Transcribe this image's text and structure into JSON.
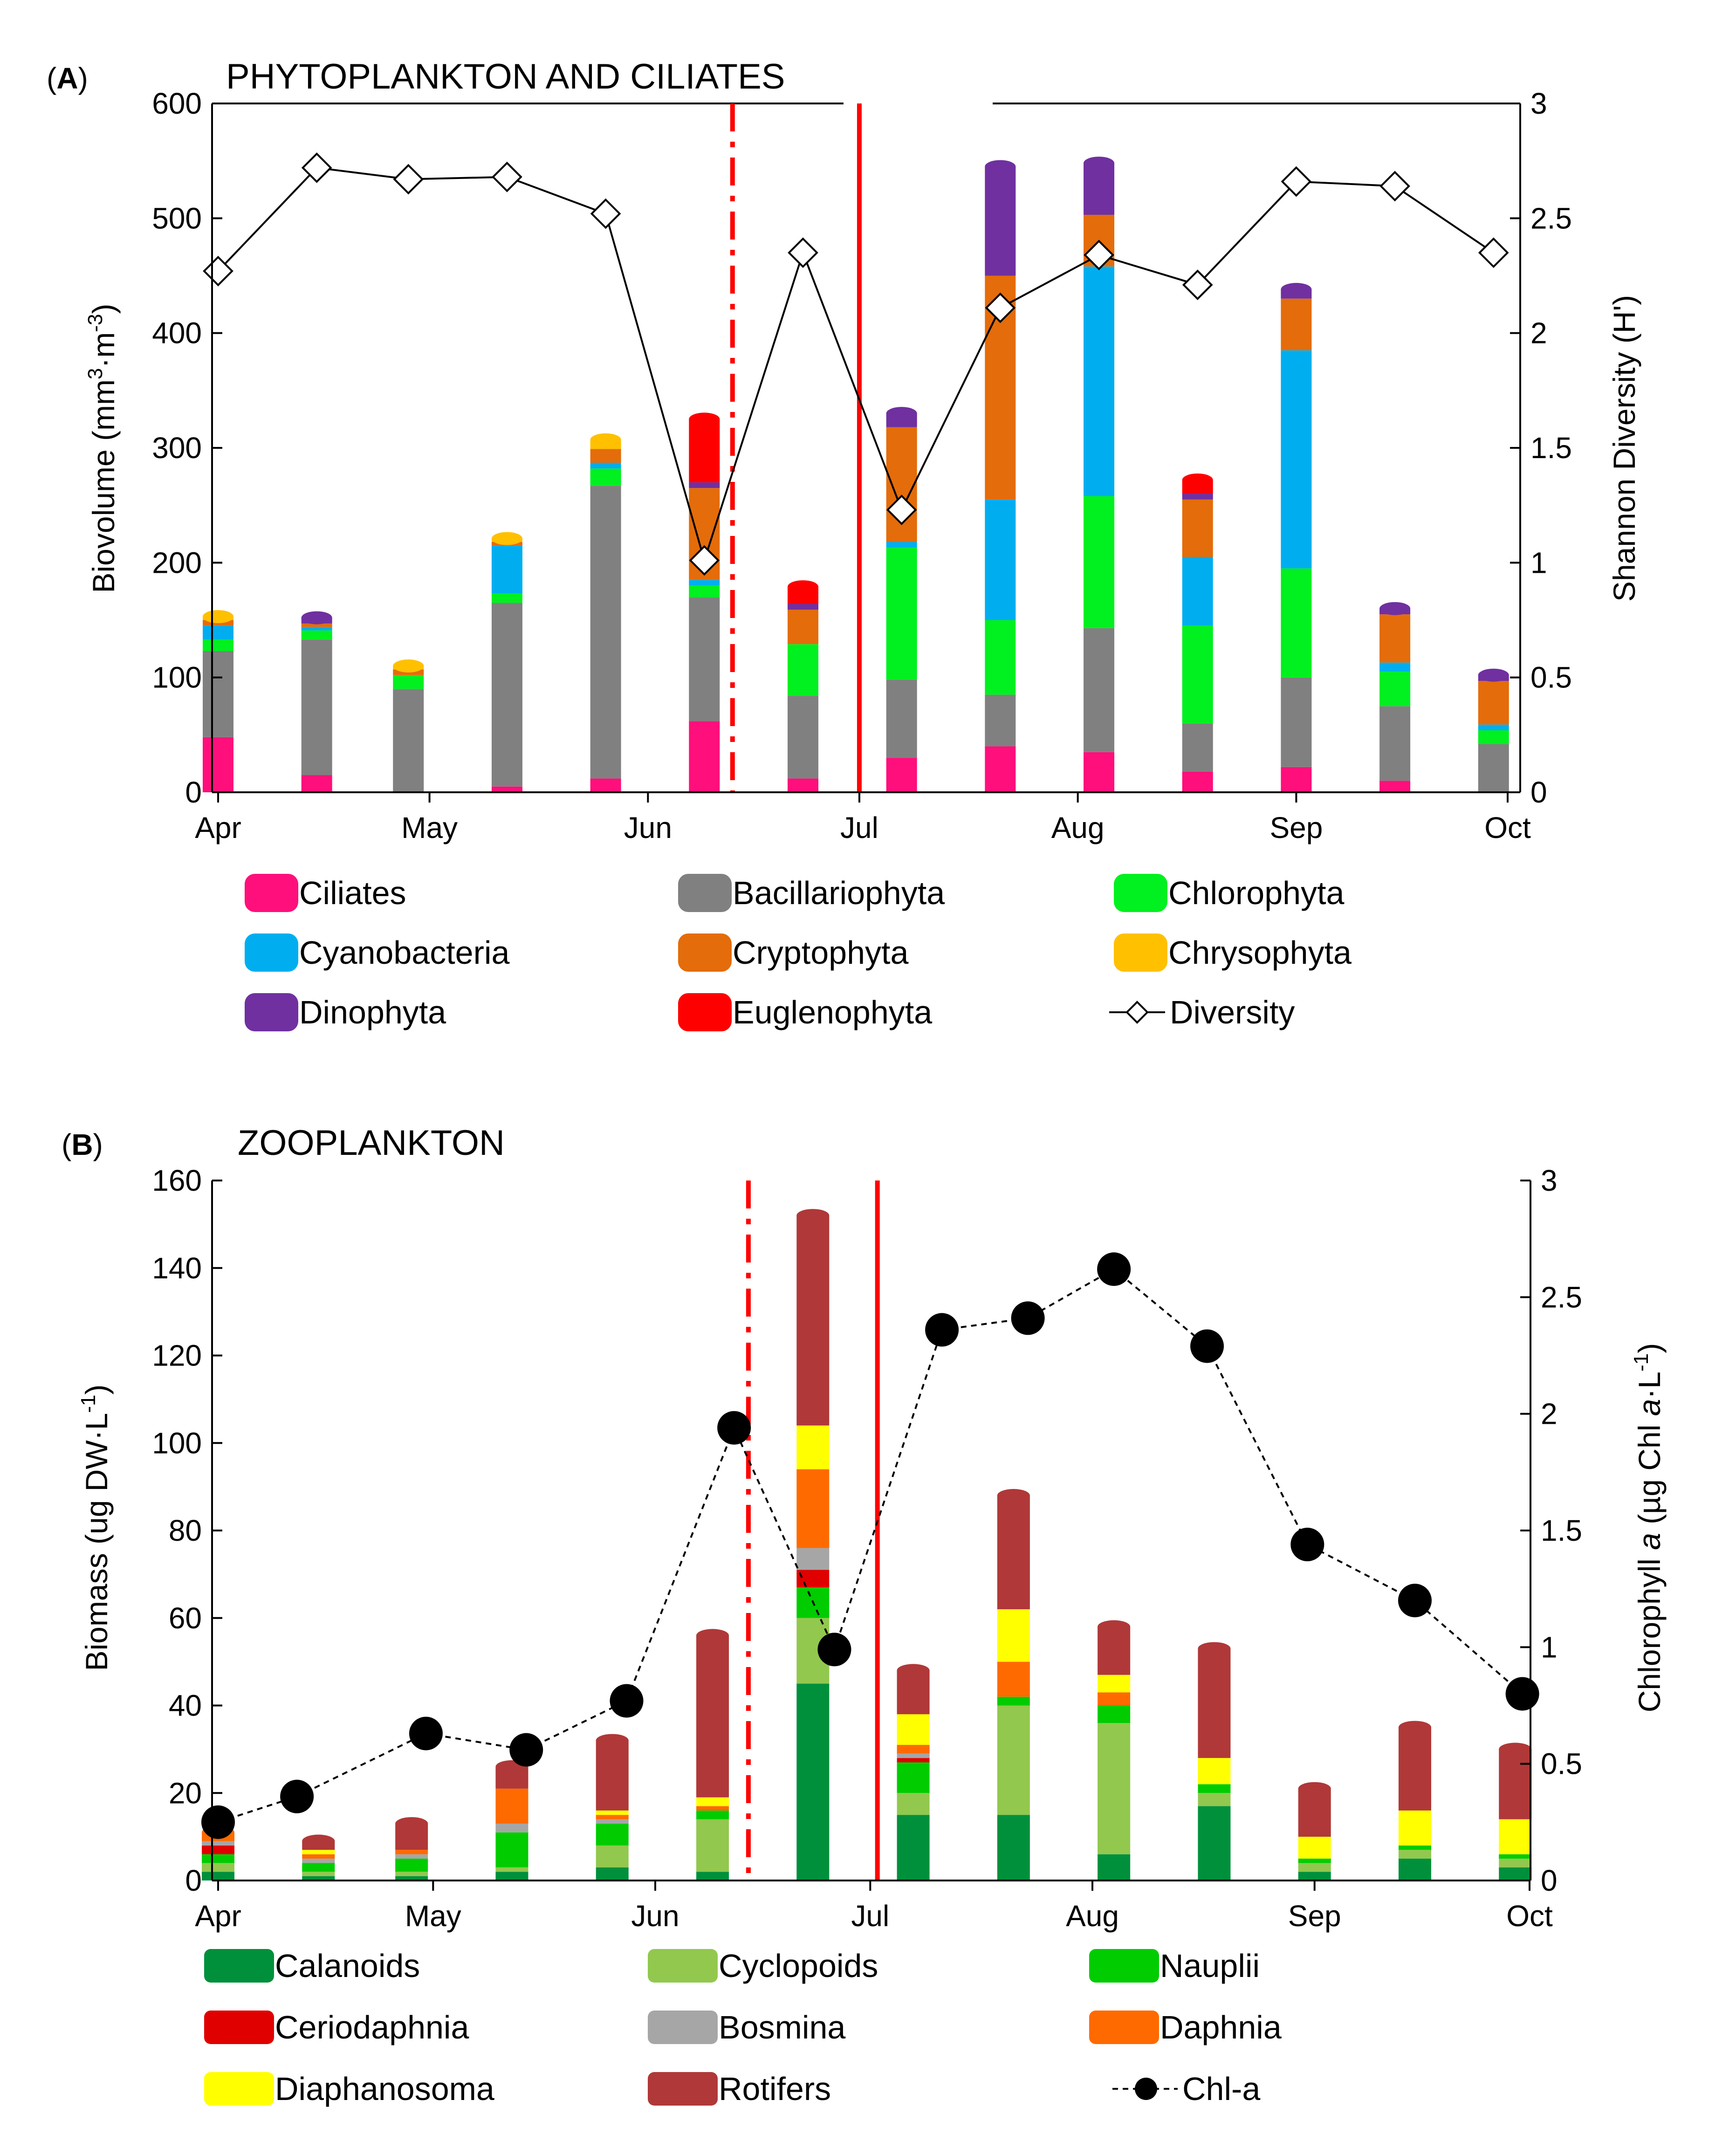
{
  "chart_data": [
    {
      "type": "bar",
      "panel_label": "A",
      "title": "PHYTOPLANKTON AND CILIATES",
      "ylabel": "Biovolume (mm³·m⁻³)",
      "ylabel_main": "Biovolume  (mm",
      "ylabel_sup1": "3",
      "ylabel_mid": "·m",
      "ylabel_sup2": "-3",
      "ylabel_end": ")",
      "y2label": "Shannon  Diversity  (H')",
      "ylim": [
        0,
        600
      ],
      "y2lim": [
        0,
        3
      ],
      "yticks": [
        "0",
        "100",
        "200",
        "300",
        "400",
        "500",
        "600"
      ],
      "y2ticks": [
        "0",
        "0.5",
        "1",
        "1.5",
        "2",
        "2.5",
        "3"
      ],
      "xticks": [
        "Apr",
        "May",
        "Jun",
        "Jul",
        "Aug",
        "Sep",
        "Oct"
      ],
      "dates": [
        "Apr 1",
        "Apr 15",
        "Apr 28",
        "May 12",
        "May 26",
        "Jun 9",
        "Jun 23",
        "Jul 7",
        "Jul 21",
        "Aug 4",
        "Aug 18",
        "Sep 1",
        "Sep 15",
        "Sep 29"
      ],
      "series": [
        {
          "name": "Ciliates",
          "color": "#ff0f7b",
          "values": [
            48,
            15,
            0,
            5,
            12,
            62,
            12,
            30,
            40,
            35,
            18,
            22,
            10,
            0
          ]
        },
        {
          "name": "Bacillariophyta",
          "color": "#808080",
          "values": [
            75,
            118,
            90,
            160,
            255,
            108,
            72,
            68,
            45,
            108,
            42,
            78,
            65,
            42
          ]
        },
        {
          "name": "Chlorophyta",
          "color": "#00f020",
          "values": [
            10,
            8,
            12,
            8,
            15,
            10,
            45,
            115,
            65,
            115,
            85,
            95,
            30,
            12
          ]
        },
        {
          "name": "Cyanobacteria",
          "color": "#00aeef",
          "values": [
            12,
            3,
            0,
            42,
            5,
            5,
            0,
            5,
            105,
            200,
            60,
            190,
            8,
            5
          ]
        },
        {
          "name": "Cryptophyta",
          "color": "#e46c0a",
          "values": [
            5,
            3,
            5,
            3,
            12,
            80,
            30,
            100,
            195,
            45,
            50,
            45,
            42,
            38
          ]
        },
        {
          "name": "Chrysophyta",
          "color": "#ffc000",
          "values": [
            3,
            0,
            3,
            3,
            8,
            0,
            0,
            0,
            0,
            0,
            0,
            0,
            0,
            0
          ]
        },
        {
          "name": "Dinophyta",
          "color": "#7030a0",
          "values": [
            0,
            5,
            0,
            0,
            0,
            5,
            5,
            12,
            95,
            45,
            5,
            8,
            5,
            5
          ]
        },
        {
          "name": "Euglenophyta",
          "color": "#ff0000",
          "values": [
            0,
            0,
            0,
            0,
            0,
            55,
            15,
            0,
            0,
            0,
            12,
            0,
            0,
            0
          ]
        }
      ],
      "totals": [
        153,
        152,
        110,
        221,
        307,
        325,
        179,
        330,
        545,
        548,
        272,
        438,
        160,
        102
      ],
      "line": {
        "name": "Diversity",
        "axis": "right",
        "marker": "open-diamond",
        "values": [
          2.27,
          2.72,
          2.67,
          2.68,
          2.52,
          1.01,
          2.35,
          1.23,
          2.11,
          2.34,
          2.21,
          2.66,
          2.64,
          2.35
        ]
      },
      "vlines": [
        {
          "style": "dash-dot",
          "color": "#ff0000",
          "position": "Jun 13"
        },
        {
          "style": "solid",
          "color": "#ff0000",
          "position": "Jul 1"
        }
      ]
    },
    {
      "type": "bar",
      "panel_label": "B",
      "title": "ZOOPLANKTON",
      "ylabel": "Biomass  (ug DW·L⁻¹)",
      "ylabel_main": "Biomass  (ug DW·L",
      "ylabel_sup1": "-1",
      "ylabel_end": ")",
      "y2label": "Chlorophyll a (µg Chl a·L⁻¹)",
      "y2label_a": "Chlorophyll ",
      "y2label_b": "a",
      "y2label_c": " (µg Chl ",
      "y2label_d": "a",
      "y2label_e": "·L",
      "y2label_sup": "-1",
      "y2label_f": ")",
      "ylim": [
        0,
        160
      ],
      "y2lim": [
        0,
        3
      ],
      "yticks": [
        "0",
        "20",
        "40",
        "60",
        "80",
        "100",
        "120",
        "140",
        "160"
      ],
      "y2ticks": [
        "0",
        "0.5",
        "1",
        "1.5",
        "2",
        "2.5",
        "3"
      ],
      "xticks": [
        "Apr",
        "May",
        "Jun",
        "Jul",
        "Aug",
        "Sep",
        "Oct"
      ],
      "bar_dates": [
        "Apr 1",
        "Apr 15",
        "Apr 28",
        "May 12",
        "May 26",
        "Jun 9",
        "Jun 23",
        "Jul 7",
        "Jul 21",
        "Aug 4",
        "Aug 18",
        "Sep 1",
        "Sep 15",
        "Sep 29"
      ],
      "series": [
        {
          "name": "Calanoids",
          "color": "#00903c",
          "values": [
            2,
            1,
            1,
            2,
            3,
            2,
            45,
            15,
            15,
            6,
            17,
            2,
            5,
            3
          ]
        },
        {
          "name": "Cyclopoids",
          "color": "#92c84e",
          "values": [
            2,
            1,
            1,
            1,
            5,
            12,
            15,
            5,
            25,
            30,
            3,
            2,
            2,
            2
          ]
        },
        {
          "name": "Nauplii",
          "color": "#00cc00",
          "values": [
            2,
            2,
            3,
            8,
            5,
            2,
            7,
            7,
            2,
            4,
            2,
            1,
            1,
            1
          ]
        },
        {
          "name": "Ceriodaphnia",
          "color": "#e00000",
          "values": [
            2,
            0,
            0,
            0,
            0,
            0,
            4,
            1,
            0,
            0,
            0,
            0,
            0,
            0
          ]
        },
        {
          "name": "Bosmina",
          "color": "#a6a6a6",
          "values": [
            1,
            1,
            1,
            2,
            1,
            0,
            5,
            1,
            0,
            0,
            0,
            0,
            0,
            0
          ]
        },
        {
          "name": "Daphnia",
          "color": "#ff6a00",
          "values": [
            2,
            1,
            1,
            8,
            1,
            1,
            18,
            2,
            8,
            3,
            0,
            0,
            0,
            0
          ]
        },
        {
          "name": "Diaphanosoma",
          "color": "#ffff00",
          "values": [
            0,
            1,
            0,
            0,
            1,
            2,
            10,
            7,
            12,
            4,
            6,
            5,
            8,
            8
          ]
        },
        {
          "name": "Rotifers",
          "color": "#b03838",
          "values": [
            0,
            2,
            6,
            5,
            16,
            37,
            48,
            10,
            26,
            11,
            25,
            11,
            19,
            16
          ]
        }
      ],
      "totals": [
        11,
        9,
        13,
        26,
        32,
        56,
        152,
        48,
        88,
        58,
        53,
        21,
        35,
        30
      ],
      "line": {
        "name": "Chl-a",
        "axis": "right",
        "marker": "filled-circle",
        "style": "dashed",
        "dates": [
          "Apr 1",
          "Apr 12",
          "Apr 30",
          "May 14",
          "May 28",
          "Jun 12",
          "Jun 26",
          "Jul 11",
          "Jul 23",
          "Aug 4",
          "Aug 17",
          "Aug 31",
          "Sep 15",
          "Sep 30"
        ],
        "values": [
          0.25,
          0.36,
          0.63,
          0.56,
          0.77,
          1.94,
          0.99,
          2.36,
          2.41,
          2.62,
          2.29,
          1.44,
          1.2,
          0.8
        ]
      },
      "vlines": [
        {
          "style": "dash-dot",
          "color": "#ff0000",
          "position": "Jun 14"
        },
        {
          "style": "solid",
          "color": "#ff0000",
          "position": "Jul 2"
        }
      ]
    }
  ]
}
